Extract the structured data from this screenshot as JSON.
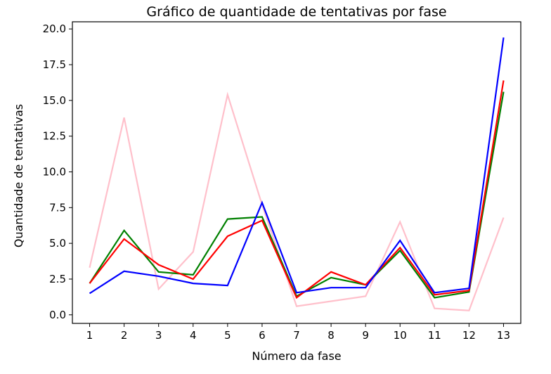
{
  "chart_data": {
    "type": "line",
    "title": "Gráfico de quantidade de tentativas por fase",
    "xlabel": "Número da fase",
    "ylabel": "Quantidade de tentativas",
    "x": [
      1,
      2,
      3,
      4,
      5,
      6,
      7,
      8,
      9,
      10,
      11,
      12,
      13
    ],
    "x_tick_labels": [
      "1",
      "2",
      "3",
      "4",
      "5",
      "6",
      "7",
      "8",
      "9",
      "10",
      "11",
      "12",
      "13"
    ],
    "y_tick_labels": [
      "0.0",
      "2.5",
      "5.0",
      "7.5",
      "10.0",
      "12.5",
      "15.0",
      "17.5",
      "20.0"
    ],
    "y_ticks": [
      0,
      2.5,
      5,
      7.5,
      10,
      12.5,
      15,
      17.5,
      20
    ],
    "xlim": [
      0.5,
      13.5
    ],
    "ylim": [
      -0.6,
      20.5
    ],
    "grid": false,
    "series": [
      {
        "color": "#ffc0cb",
        "values": [
          3.3,
          13.8,
          1.8,
          4.4,
          15.4,
          7.7,
          0.6,
          0.95,
          1.3,
          6.5,
          0.45,
          0.3,
          6.8
        ]
      },
      {
        "color": "#008000",
        "values": [
          2.2,
          5.9,
          3.0,
          2.8,
          6.7,
          6.85,
          1.3,
          2.6,
          2.1,
          4.5,
          1.2,
          1.6,
          15.6
        ]
      },
      {
        "color": "#ff0000",
        "values": [
          2.2,
          5.3,
          3.5,
          2.5,
          5.5,
          6.6,
          1.2,
          3.0,
          2.1,
          4.7,
          1.4,
          1.7,
          16.4
        ]
      },
      {
        "color": "#0000ff",
        "values": [
          1.5,
          3.05,
          2.7,
          2.2,
          2.05,
          7.85,
          1.55,
          1.9,
          1.9,
          5.2,
          1.55,
          1.85,
          19.4
        ]
      }
    ]
  }
}
